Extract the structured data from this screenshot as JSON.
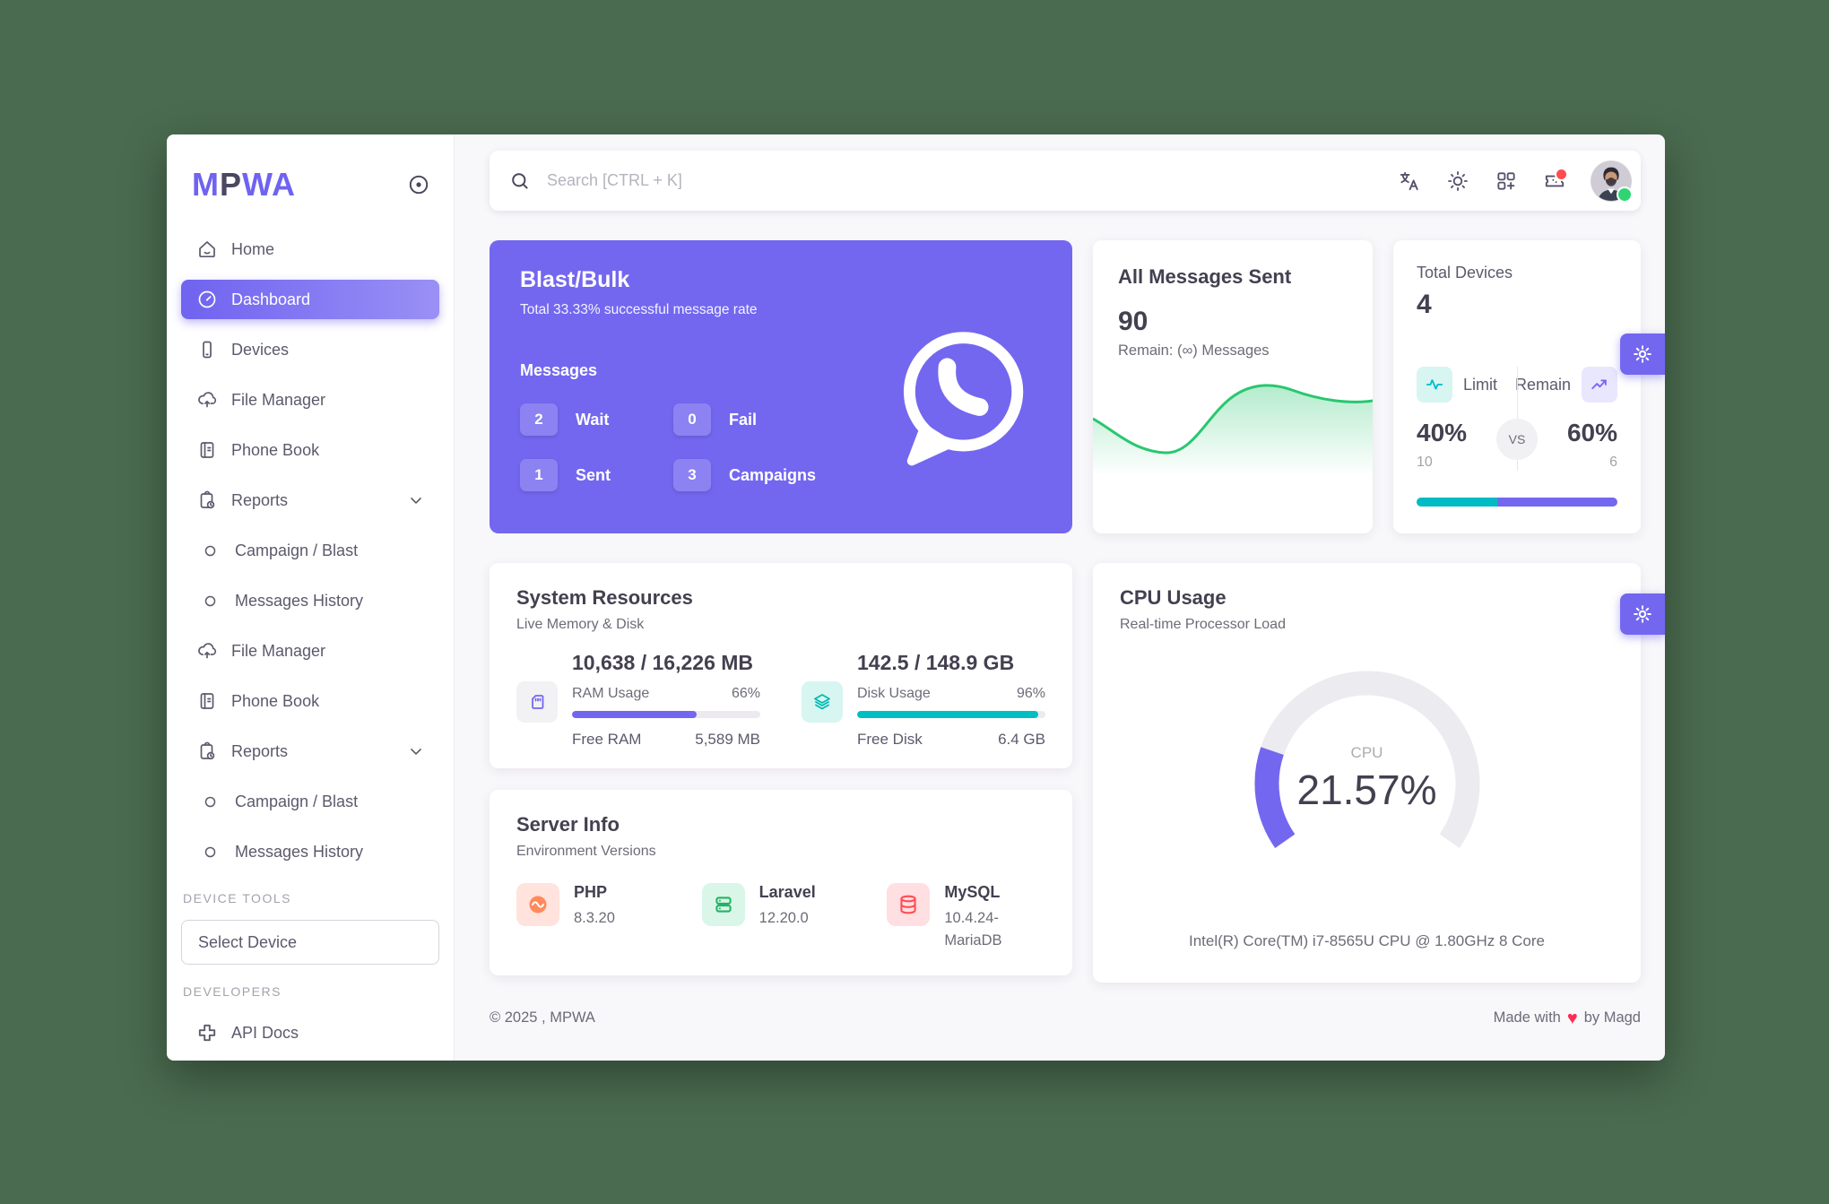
{
  "app": {
    "background_color": "#4a6b4f",
    "accent_color": "#7367f0"
  },
  "sidebar": {
    "logo": {
      "p1": "M",
      "p2": "P",
      "p3": "WA"
    },
    "items": [
      {
        "label": "Home"
      },
      {
        "label": "Dashboard",
        "active": true
      },
      {
        "label": "Devices"
      },
      {
        "label": "File Manager"
      },
      {
        "label": "Phone Book"
      },
      {
        "label": "Reports",
        "expandable": true
      },
      {
        "label": "Campaign / Blast",
        "sub": true
      },
      {
        "label": "Messages History",
        "sub": true
      },
      {
        "label": "File Manager"
      },
      {
        "label": "Phone Book"
      },
      {
        "label": "Reports",
        "expandable": true
      },
      {
        "label": "Campaign / Blast",
        "sub": true
      },
      {
        "label": "Messages History",
        "sub": true
      }
    ],
    "device_tools_header": "DEVICE TOOLS",
    "select_device_label": "Select Device",
    "developers_header": "DEVELOPERS",
    "api_docs_label": "API Docs"
  },
  "navbar": {
    "search_placeholder": "Search [CTRL + K]"
  },
  "blast": {
    "title": "Blast/Bulk",
    "subtitle": "Total 33.33% successful message rate",
    "messages_label": "Messages",
    "badges": [
      {
        "count": "2",
        "label": "Wait"
      },
      {
        "count": "0",
        "label": "Fail"
      },
      {
        "count": "1",
        "label": "Sent"
      },
      {
        "count": "3",
        "label": "Campaigns"
      }
    ]
  },
  "all_messages": {
    "title": "All Messages Sent",
    "count": "90",
    "remain": "Remain: (∞) Messages",
    "line_color": "#28c76f"
  },
  "devices_card": {
    "title": "Total Devices",
    "count": "4",
    "limit_label": "Limit",
    "remain_label": "Remain",
    "vs_label": "VS",
    "limit_percent": "40%",
    "remain_percent": "60%",
    "limit_value": "10",
    "remain_value": "6",
    "limit_pct_num": 40,
    "remain_pct_num": 60,
    "limit_color": "#00bac4",
    "remain_color": "#7367f0"
  },
  "system_resources": {
    "title": "System Resources",
    "subtitle": "Live Memory & Disk",
    "ram": {
      "value": "10,638 / 16,226 MB",
      "usage_label": "RAM Usage",
      "usage_percent": "66%",
      "pct_num": 66,
      "free_label": "Free RAM",
      "free_value": "5,589 MB"
    },
    "disk": {
      "value": "142.5 / 148.9 GB",
      "usage_label": "Disk Usage",
      "usage_percent": "96%",
      "pct_num": 96,
      "free_label": "Free Disk",
      "free_value": "6.4 GB"
    }
  },
  "server_info": {
    "title": "Server Info",
    "subtitle": "Environment Versions",
    "items": [
      {
        "name": "PHP",
        "version": "8.3.20"
      },
      {
        "name": "Laravel",
        "version": "12.20.0"
      },
      {
        "name": "MySQL",
        "version": "10.4.24-MariaDB"
      }
    ]
  },
  "cpu": {
    "title": "CPU Usage",
    "subtitle": "Real-time Processor Load",
    "gauge_label": "CPU",
    "gauge_value": "21.57%",
    "gauge_pct_num": 21.57,
    "processor": "Intel(R) Core(TM) i7-8565U CPU @ 1.80GHz 8 Core"
  },
  "footer": {
    "copyright": "© 2025 , MPWA",
    "made_with": "Made with",
    "heart": "♥",
    "by": "by Magd"
  }
}
